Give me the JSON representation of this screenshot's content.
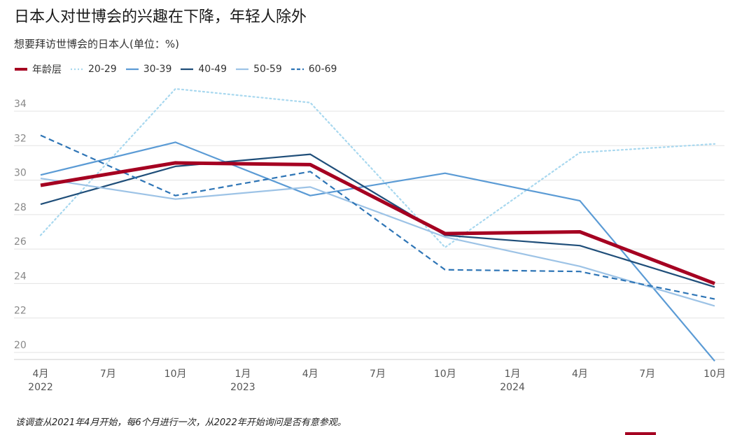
{
  "title": "日本人对世博会的兴趣在下降，年轻人除外",
  "subtitle": "想要拜访世博会的日本人(单位：%)",
  "footnote": "该调查从2021年4月开始，每6个月进行一次，从2022年开始询问是否有意参观。",
  "chart_data": {
    "type": "line",
    "categories": [
      "2022-04",
      "2022-10",
      "2023-04",
      "2023-10",
      "2024-04",
      "2024-10"
    ],
    "x_tick_labels": [
      {
        "month": "4月",
        "year": "2022"
      },
      {
        "month": "7月",
        "year": ""
      },
      {
        "month": "10月",
        "year": ""
      },
      {
        "month": "1月",
        "year": "2023"
      },
      {
        "month": "4月",
        "year": ""
      },
      {
        "month": "7月",
        "year": ""
      },
      {
        "month": "10月",
        "year": ""
      },
      {
        "month": "1月",
        "year": "2024"
      },
      {
        "month": "4月",
        "year": ""
      },
      {
        "month": "7月",
        "year": ""
      },
      {
        "month": "10月",
        "year": ""
      }
    ],
    "y_ticks": [
      20,
      22,
      24,
      26,
      28,
      30,
      32,
      34
    ],
    "ylim": [
      20,
      34
    ],
    "grid": true,
    "legend_placement": "top-left",
    "series": [
      {
        "name": "年龄层",
        "values": [
          29.7,
          31.0,
          30.9,
          26.9,
          27.0,
          24.0
        ],
        "color": "#a50021",
        "style": "solid-thick"
      },
      {
        "name": "20-29",
        "values": [
          26.8,
          35.3,
          34.5,
          26.1,
          31.6,
          32.1
        ],
        "color": "#a8d8ef",
        "style": "dotted"
      },
      {
        "name": "30-39",
        "values": [
          30.3,
          32.2,
          29.1,
          30.4,
          28.8,
          19.5
        ],
        "color": "#5b9bd5",
        "style": "solid"
      },
      {
        "name": "40-49",
        "values": [
          28.6,
          30.8,
          31.5,
          26.8,
          26.2,
          23.8
        ],
        "color": "#1f4e79",
        "style": "solid"
      },
      {
        "name": "50-59",
        "values": [
          30.1,
          28.9,
          29.6,
          26.7,
          25.0,
          22.7
        ],
        "color": "#9dc3e6",
        "style": "solid"
      },
      {
        "name": "60-69",
        "values": [
          32.6,
          29.1,
          30.5,
          24.8,
          24.7,
          23.1
        ],
        "color": "#2e75b6",
        "style": "dashed"
      }
    ]
  }
}
